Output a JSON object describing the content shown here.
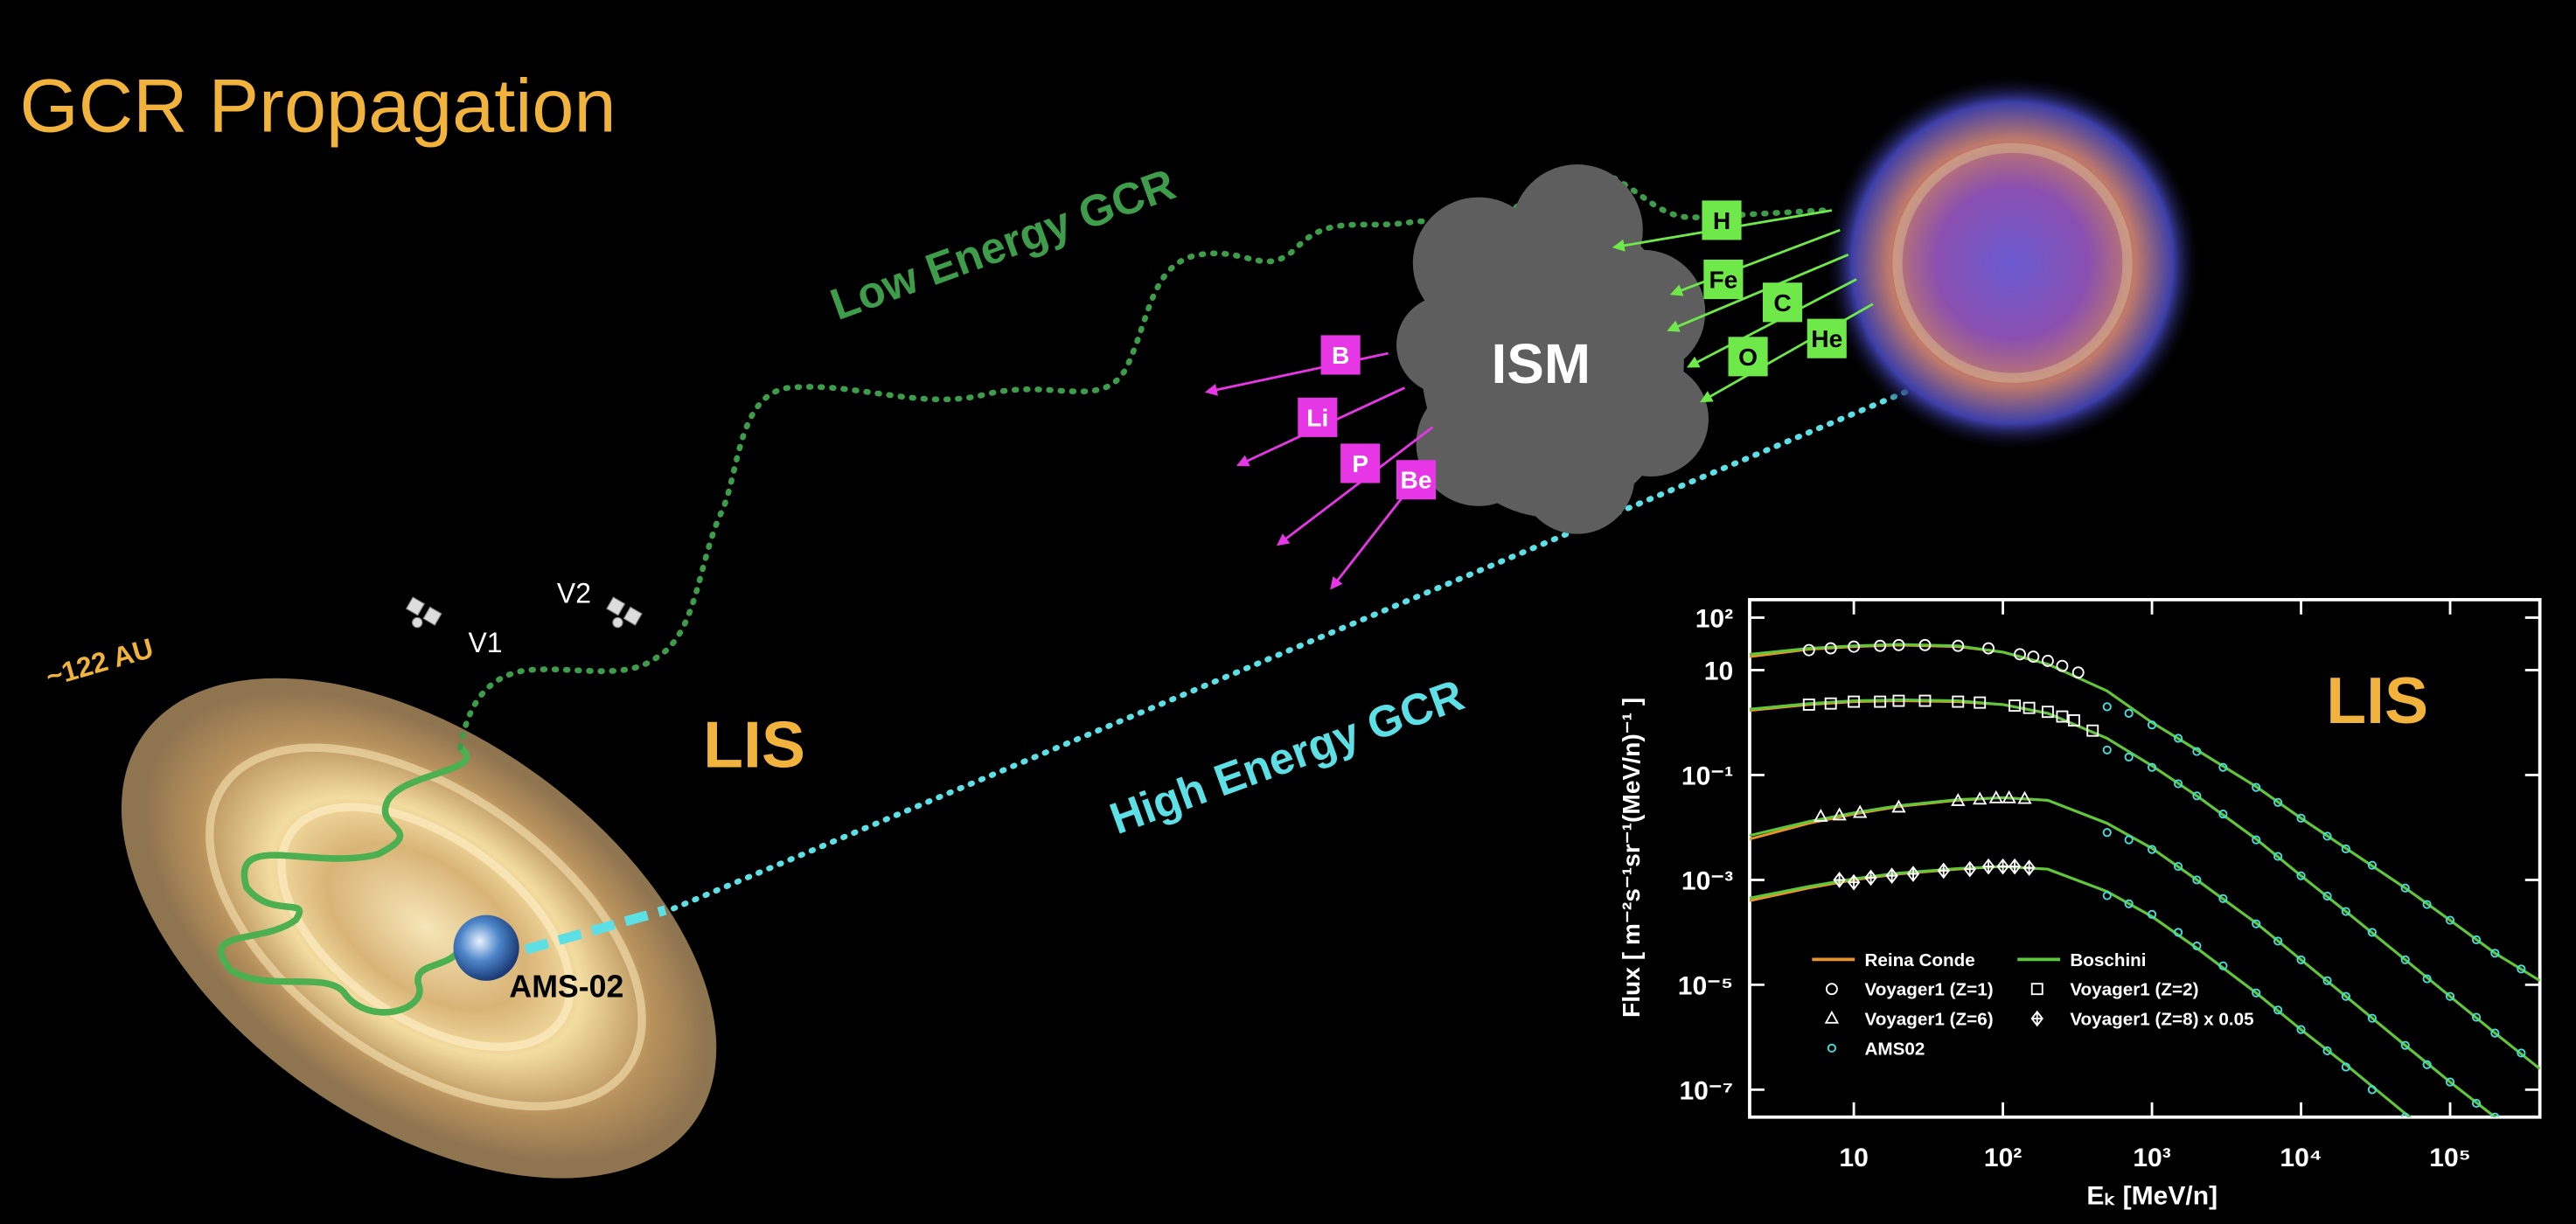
{
  "title": "GCR Propagation",
  "labels": {
    "low_energy": "Low Energy GCR",
    "high_energy": "High Energy GCR",
    "ism": "ISM",
    "lis": "LIS",
    "distance": "~122 AU",
    "v1": "V1",
    "v2": "V2",
    "ams": "AMS-02"
  },
  "primaries": [
    "H",
    "Fe",
    "C",
    "O",
    "He"
  ],
  "secondaries": [
    "B",
    "Li",
    "P",
    "Be"
  ],
  "chart_data": {
    "type": "line",
    "log_x": true,
    "log_y": true,
    "legend": "lower left",
    "annotation": "LIS",
    "xlabel": "Eₖ [MeV/n]",
    "ylabel": "Flux [ m⁻²s⁻¹sr⁻¹(MeV/n)⁻¹ ]",
    "xlim": [
      2,
      400000
    ],
    "ylim": [
      3e-08,
      220
    ],
    "xticks": [
      10,
      {
        "value": 100,
        "label": "10²"
      },
      {
        "value": 1000,
        "label": "10³"
      },
      {
        "value": 10000,
        "label": "10⁴"
      },
      {
        "value": 100000,
        "label": "10⁵"
      }
    ],
    "yticks": [
      {
        "value": 100,
        "label": "10²"
      },
      10,
      {
        "value": 0.1,
        "label": "10⁻¹"
      },
      {
        "value": 0.001,
        "label": "10⁻³"
      },
      {
        "value": 1e-05,
        "label": "10⁻⁵"
      },
      {
        "value": 1e-07,
        "label": "10⁻⁷"
      }
    ],
    "x": [
      2,
      5,
      10,
      20,
      50,
      100,
      200,
      500,
      1000,
      2000,
      5000,
      10000,
      20000,
      50000,
      100000,
      200000,
      400000
    ],
    "series": [
      {
        "name": "Reina Conde",
        "color": "#e8942a",
        "curves": [
          [
            18,
            25,
            28,
            30,
            28,
            22,
            13,
            4,
            1.0,
            0.3,
            0.06,
            0.015,
            0.004,
            0.0007,
            0.00017,
            4e-05,
            1.2e-05
          ],
          [
            1.7,
            2.2,
            2.5,
            2.6,
            2.5,
            2.2,
            1.5,
            0.5,
            0.15,
            0.04,
            0.006,
            0.0012,
            0.00025,
            3e-05,
            6e-06,
            1.2e-06,
            2.5e-07
          ],
          [
            0.006,
            0.012,
            0.018,
            0.025,
            0.033,
            0.037,
            0.033,
            0.012,
            0.004,
            0.001,
            0.00015,
            3e-05,
            6e-06,
            7e-07,
            1.4e-07,
            3e-08,
            6e-09
          ],
          [
            0.0004,
            0.0007,
            0.001,
            0.0013,
            0.0016,
            0.0018,
            0.0016,
            0.0006,
            0.0002,
            5e-05,
            7e-06,
            1.4e-06,
            3e-07,
            3.5e-08,
            7e-09,
            1.4e-09,
            3e-10
          ]
        ]
      },
      {
        "name": "Boschini",
        "color": "#5cc93a",
        "curves": [
          [
            20,
            26,
            29,
            31,
            29,
            22,
            13,
            4,
            1.0,
            0.3,
            0.06,
            0.015,
            0.004,
            0.0007,
            0.00017,
            4e-05,
            1.2e-05
          ],
          [
            1.8,
            2.3,
            2.6,
            2.7,
            2.6,
            2.2,
            1.5,
            0.5,
            0.15,
            0.04,
            0.006,
            0.0012,
            0.00025,
            3e-05,
            6e-06,
            1.2e-06,
            2.5e-07
          ],
          [
            0.007,
            0.013,
            0.019,
            0.026,
            0.034,
            0.037,
            0.033,
            0.012,
            0.004,
            0.001,
            0.00015,
            3e-05,
            6e-06,
            7e-07,
            1.4e-07,
            3e-08,
            6e-09
          ],
          [
            0.00045,
            0.00075,
            0.00105,
            0.00135,
            0.00165,
            0.0018,
            0.0016,
            0.0006,
            0.0002,
            5e-05,
            7e-06,
            1.4e-06,
            3e-07,
            3.5e-08,
            7e-09,
            1.4e-09,
            3e-10
          ]
        ]
      },
      {
        "name": "Voyager1 (Z=1)",
        "color": "#ffffff",
        "marker": "circle",
        "x": [
          5,
          7,
          10,
          15,
          20,
          30,
          50,
          80,
          130,
          160,
          200,
          250,
          320
        ],
        "values": [
          24,
          26,
          28,
          29,
          30,
          30,
          29,
          26,
          20,
          18,
          15,
          12,
          9
        ]
      },
      {
        "name": "Voyager1 (Z=2)",
        "color": "#ffffff",
        "marker": "square",
        "x": [
          5,
          7,
          10,
          15,
          20,
          30,
          50,
          70,
          120,
          150,
          200,
          250,
          300,
          400
        ],
        "values": [
          2.2,
          2.3,
          2.5,
          2.5,
          2.6,
          2.6,
          2.5,
          2.4,
          2.1,
          1.9,
          1.6,
          1.3,
          1.1,
          0.7
        ]
      },
      {
        "name": "Voyager1 (Z=6)",
        "color": "#ffffff",
        "marker": "triangle",
        "x": [
          6,
          8,
          11,
          20,
          50,
          70,
          90,
          110,
          140
        ],
        "values": [
          0.016,
          0.017,
          0.019,
          0.024,
          0.032,
          0.034,
          0.036,
          0.036,
          0.035
        ]
      },
      {
        "name": "Voyager1 (Z=8) x 0.05",
        "color": "#ffffff",
        "marker": "diamond",
        "x": [
          8,
          10,
          13,
          18,
          25,
          40,
          60,
          80,
          100,
          120,
          150
        ],
        "values": [
          0.001,
          0.0009,
          0.0011,
          0.0012,
          0.0013,
          0.0015,
          0.0016,
          0.0018,
          0.0018,
          0.0018,
          0.0017
        ]
      },
      {
        "name": "AMS02",
        "color": "#40e0e0",
        "marker": "circle",
        "x": [
          500,
          700,
          1000,
          1500,
          2000,
          3000,
          5000,
          7000,
          10000,
          15000,
          20000,
          30000,
          50000,
          70000,
          100000,
          150000,
          200000,
          300000
        ],
        "curves": [
          [
            2.0,
            1.5,
            0.9,
            0.5,
            0.28,
            0.14,
            0.058,
            0.03,
            0.015,
            0.0068,
            0.0039,
            0.0019,
            0.0007,
            0.00034,
            0.00017,
            7.2e-05,
            4e-05,
            2e-05
          ],
          [
            0.3,
            0.22,
            0.14,
            0.068,
            0.04,
            0.018,
            0.0058,
            0.0028,
            0.0012,
            0.00049,
            0.00025,
            0.0001,
            3e-05,
            1.3e-05,
            6e-06,
            2.4e-06,
            1.2e-06,
            5e-07
          ],
          [
            0.008,
            0.0058,
            0.0038,
            0.0018,
            0.001,
            0.00044,
            0.000145,
            6.8e-05,
            3e-05,
            1.2e-05,
            6e-06,
            2.3e-06,
            7e-07,
            3e-07,
            1.4e-07,
            5.5e-08,
            3e-08,
            null
          ],
          [
            0.0005,
            0.00035,
            0.00022,
            0.0001,
            5.5e-05,
            2.3e-05,
            7e-06,
            3.3e-06,
            1.4e-06,
            5.5e-07,
            2.7e-07,
            1e-07,
            3e-08,
            null,
            null,
            null,
            null,
            null
          ]
        ]
      }
    ]
  }
}
